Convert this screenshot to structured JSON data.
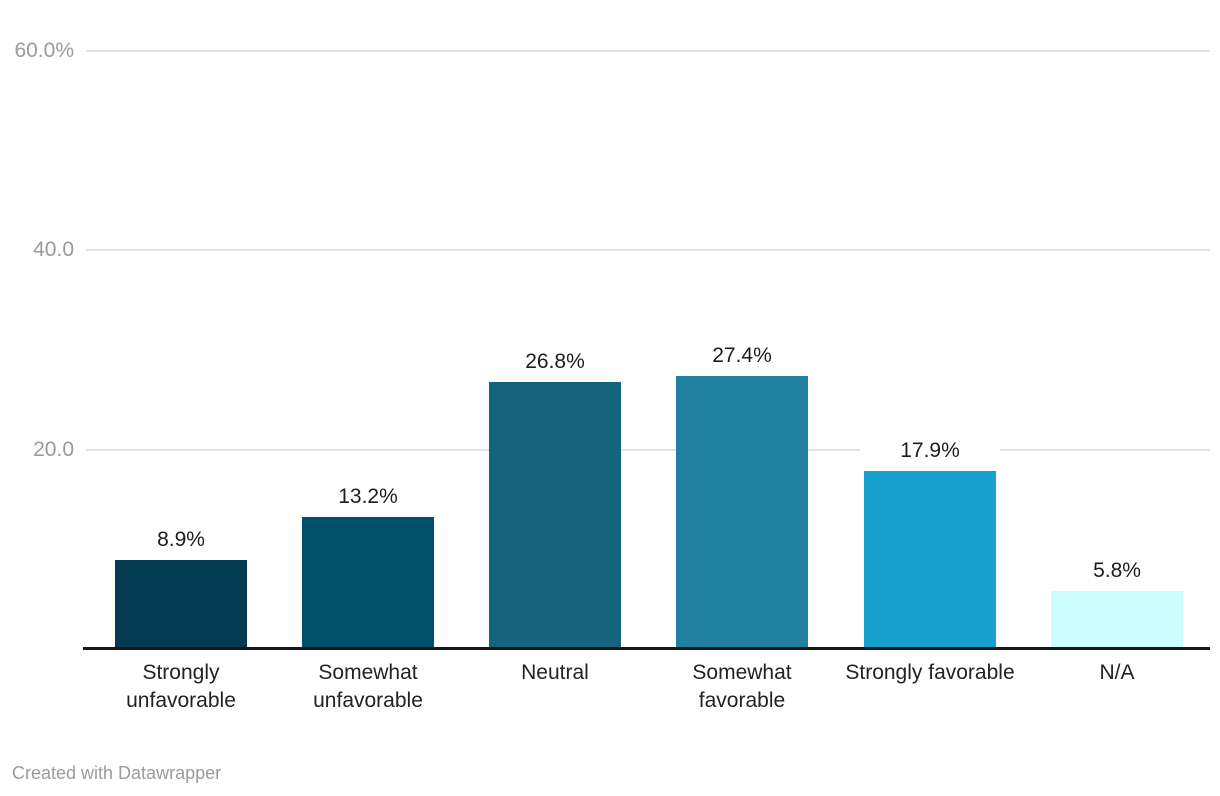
{
  "chart_data": {
    "type": "bar",
    "categories": [
      "Strongly unfavorable",
      "Somewhat unfavorable",
      "Neutral",
      "Somewhat favorable",
      "Strongly favorable",
      "N/A"
    ],
    "values": [
      8.9,
      13.2,
      26.8,
      27.4,
      17.9,
      5.8
    ],
    "value_labels": [
      "8.9%",
      "13.2%",
      "26.8%",
      "27.4%",
      "17.9%",
      "5.8%"
    ],
    "bar_colors": [
      "#043a52",
      "#00506b",
      "#15637d",
      "#2180a0",
      "#18a0cf",
      "#ccfefe"
    ],
    "title": "",
    "xlabel": "",
    "ylabel": "",
    "ylim": [
      0,
      60
    ],
    "yticks": [
      {
        "value": 60,
        "label": "60.0%"
      },
      {
        "value": 40,
        "label": "40.0"
      },
      {
        "value": 20,
        "label": "20.0"
      }
    ],
    "grid": true,
    "legend": "none",
    "background": "#ffffff"
  },
  "footer": {
    "attribution": "Created with Datawrapper"
  },
  "colors": {
    "axis_line": "#18181a",
    "gridline": "#e2e2e2",
    "tick_label": "#9a9a9a",
    "value_label": "#1d1d1d",
    "category_label": "#222222",
    "footer_text": "#9b9b9b"
  }
}
